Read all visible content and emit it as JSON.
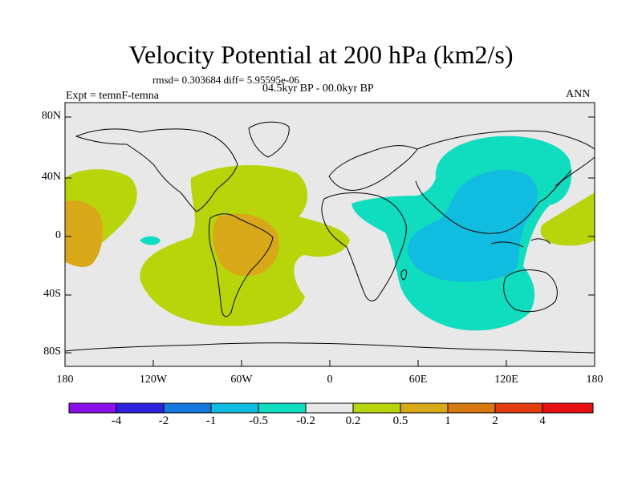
{
  "map": {
    "title": "Velocity Potential at 200 hPa (km2/s)",
    "stats": "rmsd= 0.303684 diff= 5.95595e-06",
    "period": "04.5kyr BP - 00.0kyr BP",
    "experiment": "Expt = temnF-temna",
    "season": "ANN",
    "projection": "cylindrical-equidistant",
    "extent": {
      "lon": [
        -180,
        180
      ],
      "lat": [
        -90,
        90
      ]
    },
    "lat_ticks": [
      {
        "value": 80,
        "label": "80N"
      },
      {
        "value": 40,
        "label": "40N"
      },
      {
        "value": 0,
        "label": "0"
      },
      {
        "value": -40,
        "label": "40S"
      },
      {
        "value": -80,
        "label": "80S"
      }
    ],
    "lon_ticks": [
      {
        "value": -180,
        "label": "180"
      },
      {
        "value": -120,
        "label": "120W"
      },
      {
        "value": -60,
        "label": "60W"
      },
      {
        "value": 0,
        "label": "0"
      },
      {
        "value": 60,
        "label": "60E"
      },
      {
        "value": 120,
        "label": "120E"
      },
      {
        "value": 180,
        "label": "180"
      }
    ],
    "colors": {
      "land_outline": "#000000",
      "neutral": "#e8e8e8",
      "positive_1": "#b8d40a",
      "positive_2": "#d8a818",
      "negative_1": "#10dcc0",
      "negative_2": "#10bce0"
    },
    "features": [
      {
        "name": "positive-anomaly-central-pacific",
        "sign": "positive",
        "level": "0.2-0.5"
      },
      {
        "name": "positive-anomaly-south-america",
        "sign": "positive",
        "level": "0.2-0.5"
      },
      {
        "name": "strong-positive-anomaly-amazon",
        "sign": "positive",
        "level": "0.5-1"
      },
      {
        "name": "strong-positive-anomaly-pacific",
        "sign": "positive",
        "level": "0.5-1"
      },
      {
        "name": "negative-anomaly-asia-indian-ocean",
        "sign": "negative",
        "level": "-0.5--0.2"
      },
      {
        "name": "strong-negative-anomaly-asia",
        "sign": "negative",
        "level": "-1--0.5"
      },
      {
        "name": "positive-anomaly-west-pacific",
        "sign": "positive",
        "level": "0.2-0.5"
      }
    ]
  },
  "colorbar": {
    "colors": [
      "#8c10e8",
      "#2e22dc",
      "#1478e0",
      "#10bce0",
      "#10dcc0",
      "#e8e8e8",
      "#b8d40a",
      "#d8a818",
      "#d87810",
      "#e03c10",
      "#e81010"
    ],
    "labels": [
      "-4",
      "-2",
      "-1",
      "-0.5",
      "-0.2",
      "0.2",
      "0.5",
      "1",
      "2",
      "4"
    ]
  }
}
